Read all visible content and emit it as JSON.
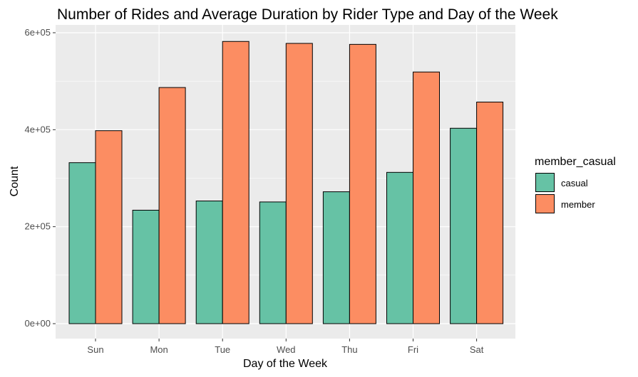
{
  "chart_data": {
    "type": "bar",
    "title": "Number of Rides and Average Duration by Rider Type and Day of the Week",
    "xlabel": "Day of the Week",
    "ylabel": "Count",
    "categories": [
      "Sun",
      "Mon",
      "Tue",
      "Wed",
      "Thu",
      "Fri",
      "Sat"
    ],
    "series": [
      {
        "name": "casual",
        "color": "#66c2a5",
        "values": [
          332000,
          234000,
          253000,
          251000,
          272000,
          312000,
          403000
        ]
      },
      {
        "name": "member",
        "color": "#fc8d62",
        "values": [
          398000,
          487000,
          582000,
          578000,
          576000,
          519000,
          457000
        ]
      }
    ],
    "ylim": [
      0,
      600000
    ],
    "yticks": [
      0,
      200000,
      400000,
      600000
    ],
    "ytick_labels": [
      "0e+00",
      "2e+05",
      "4e+05",
      "6e+05"
    ],
    "grid": true,
    "legend": {
      "title": "member_casual",
      "placement": "right"
    },
    "panel_background": "#ebebeb",
    "grid_color": "#ffffff"
  }
}
